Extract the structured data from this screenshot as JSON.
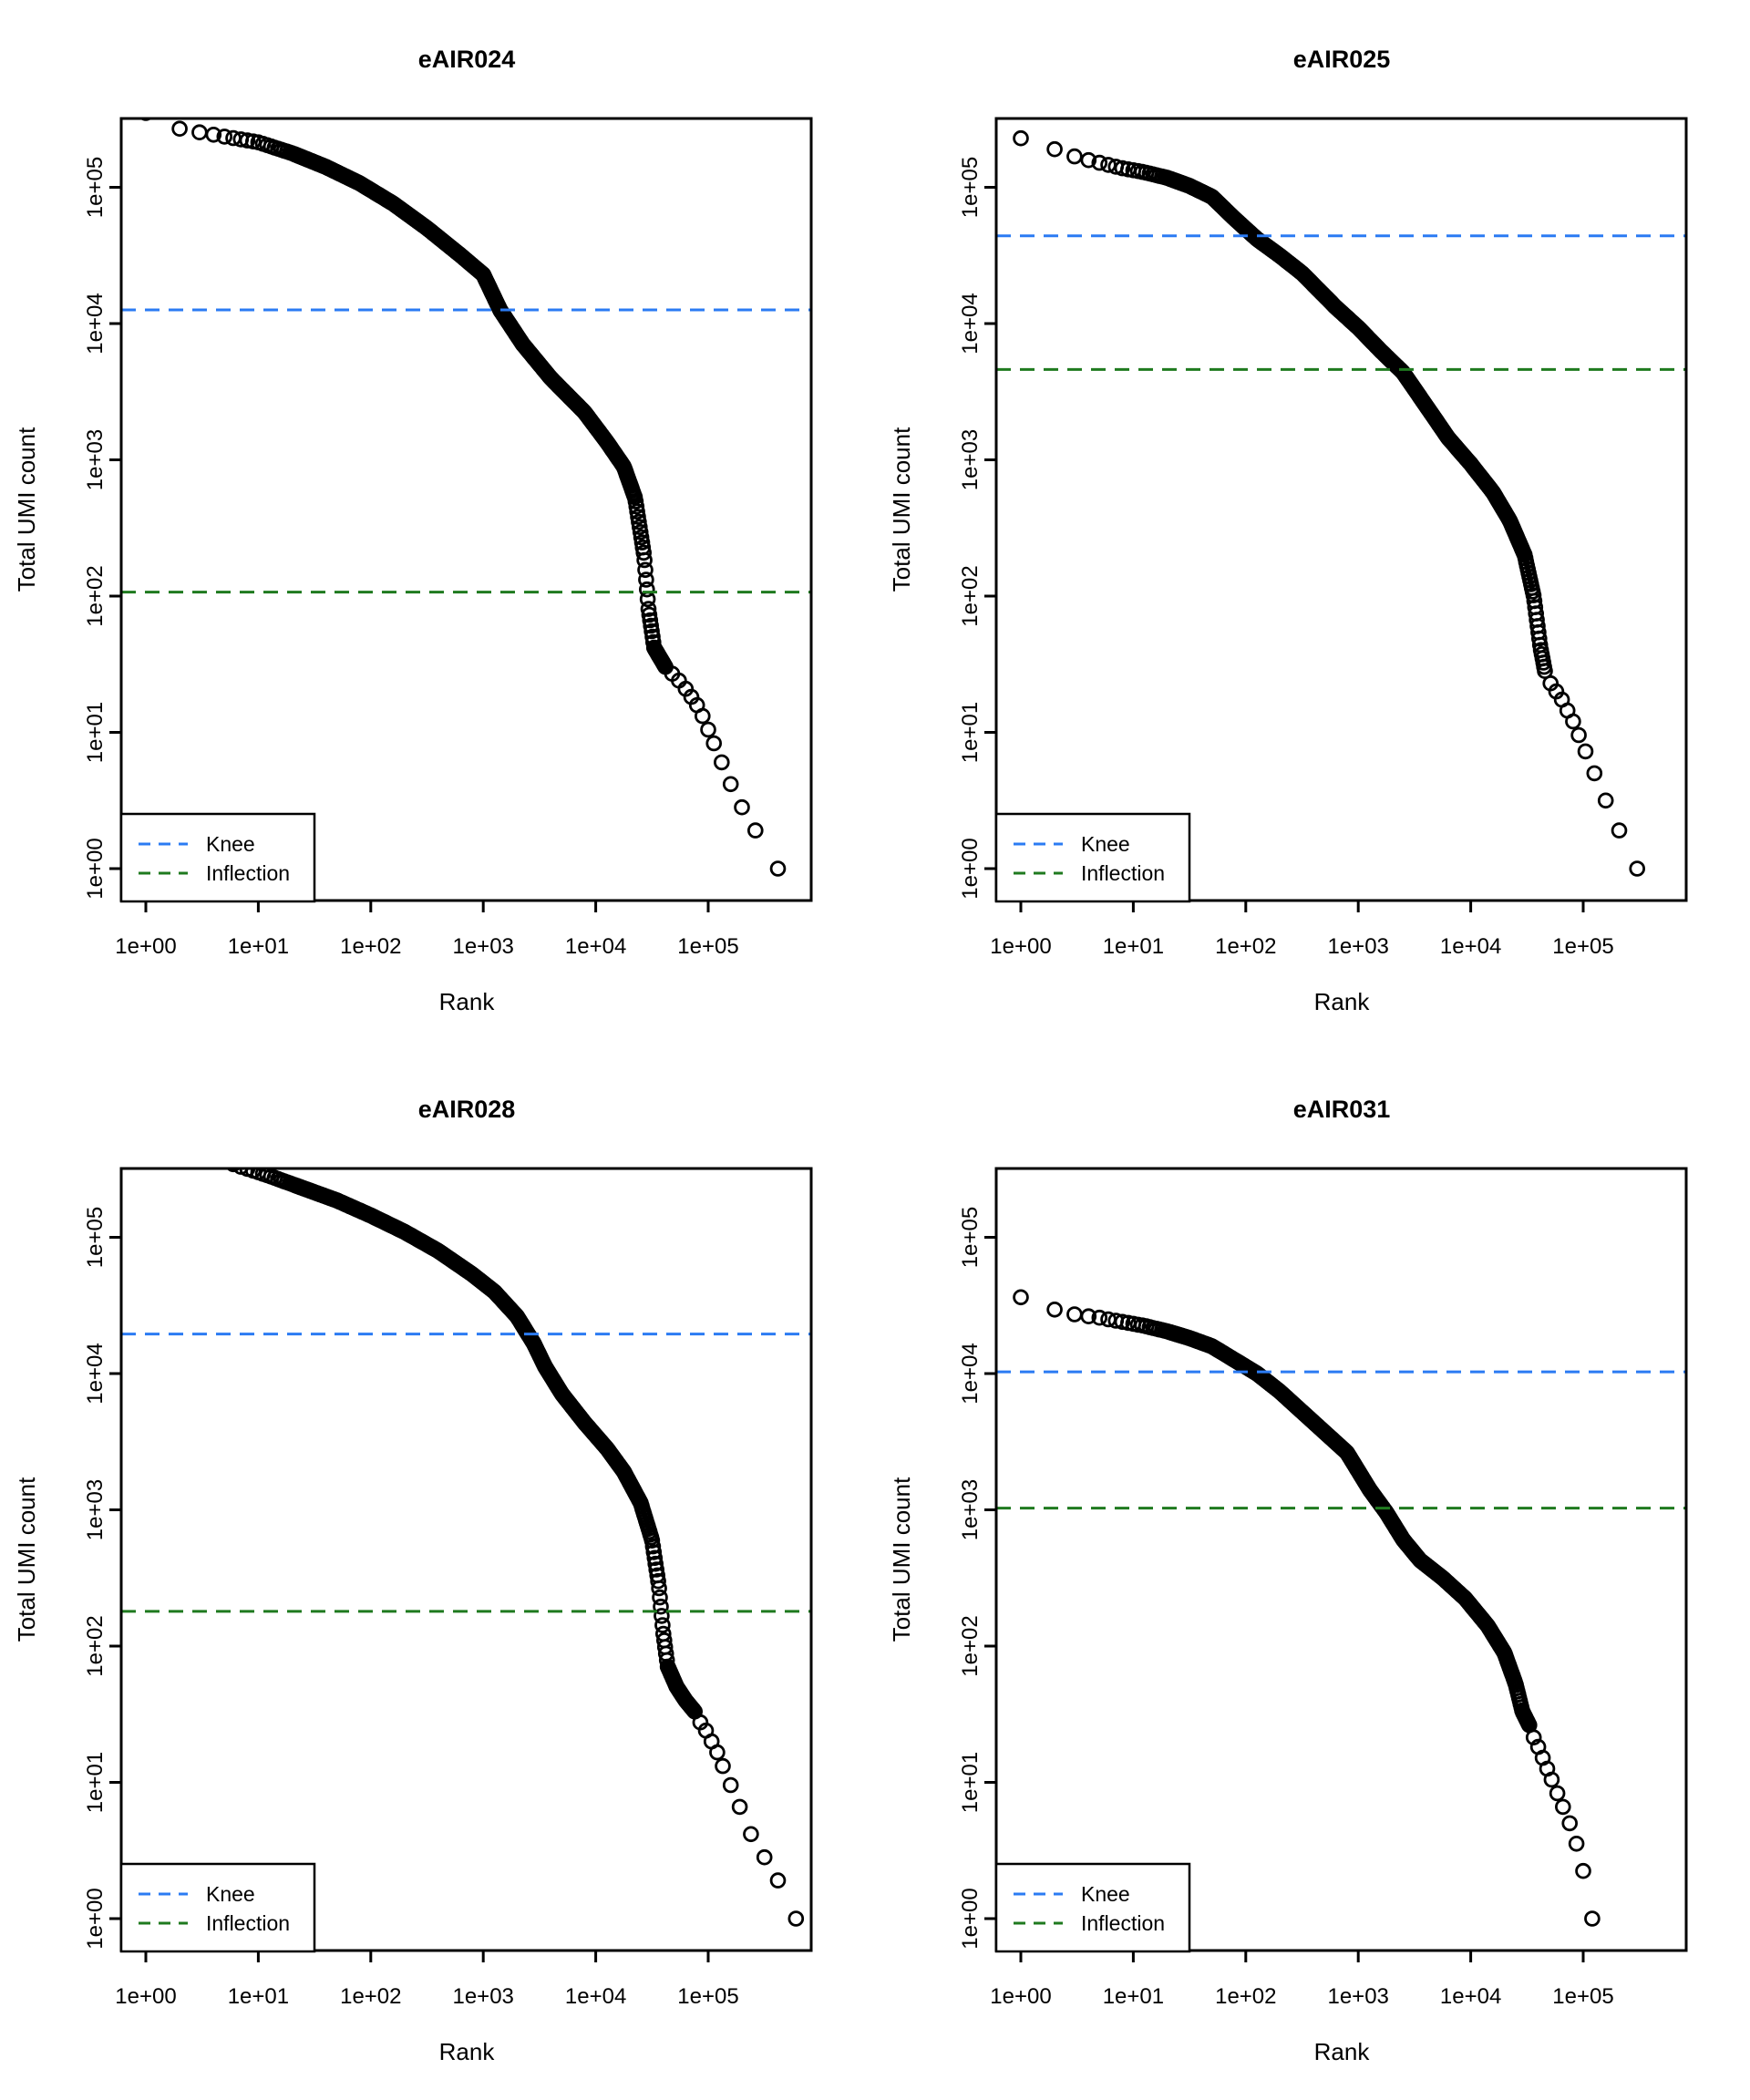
{
  "figure": {
    "rows": 2,
    "cols": 2,
    "background": "#ffffff"
  },
  "colors": {
    "knee_line": "#2b7bf3",
    "inflection_line": "#1f7a1f",
    "points": "#000000",
    "axis": "#000000"
  },
  "chart_data": [
    {
      "type": "scatter",
      "title": "eAIR024",
      "xlabel": "Rank",
      "ylabel": "Total UMI count",
      "xscale": "log10",
      "yscale": "log10",
      "grid": false,
      "x_tick_labels": [
        "1e+00",
        "1e+01",
        "1e+02",
        "1e+03",
        "1e+04",
        "1e+05"
      ],
      "y_tick_labels": [
        "1e+00",
        "1e+01",
        "1e+02",
        "1e+03",
        "1e+04",
        "1e+05"
      ],
      "legend": {
        "position": "bottom-left",
        "items": [
          {
            "label": "Knee",
            "color": "#2b7bf3"
          },
          {
            "label": "Inflection",
            "color": "#1f7a1f"
          }
        ]
      },
      "knee": 12600,
      "inflection": 107,
      "curve_log10_anchors": [
        [
          0,
          5.545
        ],
        [
          0.3,
          5.43
        ],
        [
          0.5,
          5.4
        ],
        [
          0.75,
          5.365
        ],
        [
          1.0,
          5.33
        ],
        [
          1.3,
          5.25
        ],
        [
          1.6,
          5.15
        ],
        [
          1.9,
          5.03
        ],
        [
          2.2,
          4.88
        ],
        [
          2.5,
          4.7
        ],
        [
          2.8,
          4.5
        ],
        [
          3.0,
          4.36
        ],
        [
          3.15,
          4.1
        ],
        [
          3.35,
          3.85
        ],
        [
          3.6,
          3.6
        ],
        [
          3.9,
          3.35
        ],
        [
          4.1,
          3.13
        ],
        [
          4.25,
          2.95
        ],
        [
          4.35,
          2.72
        ],
        [
          4.43,
          2.3
        ],
        [
          4.47,
          1.9
        ],
        [
          4.52,
          1.62
        ],
        [
          4.62,
          1.48
        ]
      ],
      "tail_points_log10": [
        [
          4.68,
          1.43
        ],
        [
          4.74,
          1.38
        ],
        [
          4.8,
          1.32
        ],
        [
          4.85,
          1.26
        ],
        [
          4.9,
          1.2
        ],
        [
          4.95,
          1.12
        ],
        [
          5.0,
          1.02
        ],
        [
          5.05,
          0.92
        ],
        [
          5.12,
          0.78
        ],
        [
          5.2,
          0.62
        ],
        [
          5.3,
          0.45
        ],
        [
          5.42,
          0.28
        ],
        [
          5.62,
          0.0
        ]
      ]
    },
    {
      "type": "scatter",
      "title": "eAIR025",
      "xlabel": "Rank",
      "ylabel": "Total UMI count",
      "xscale": "log10",
      "yscale": "log10",
      "grid": false,
      "x_tick_labels": [
        "1e+00",
        "1e+01",
        "1e+02",
        "1e+03",
        "1e+04",
        "1e+05"
      ],
      "y_tick_labels": [
        "1e+00",
        "1e+01",
        "1e+02",
        "1e+03",
        "1e+04",
        "1e+05"
      ],
      "legend": {
        "position": "bottom-left",
        "items": [
          {
            "label": "Knee",
            "color": "#2b7bf3"
          },
          {
            "label": "Inflection",
            "color": "#1f7a1f"
          }
        ]
      },
      "knee": 44000,
      "inflection": 4600,
      "curve_log10_anchors": [
        [
          0,
          5.36
        ],
        [
          0.3,
          5.28
        ],
        [
          0.5,
          5.22
        ],
        [
          0.7,
          5.18
        ],
        [
          0.9,
          5.14
        ],
        [
          1.1,
          5.11
        ],
        [
          1.3,
          5.07
        ],
        [
          1.5,
          5.01
        ],
        [
          1.7,
          4.93
        ],
        [
          1.9,
          4.77
        ],
        [
          2.1,
          4.62
        ],
        [
          2.3,
          4.5
        ],
        [
          2.5,
          4.37
        ],
        [
          2.8,
          4.12
        ],
        [
          3.0,
          3.97
        ],
        [
          3.2,
          3.8
        ],
        [
          3.4,
          3.64
        ],
        [
          3.6,
          3.4
        ],
        [
          3.8,
          3.16
        ],
        [
          4.0,
          2.97
        ],
        [
          4.2,
          2.76
        ],
        [
          4.35,
          2.55
        ],
        [
          4.48,
          2.3
        ],
        [
          4.56,
          2.0
        ],
        [
          4.62,
          1.62
        ],
        [
          4.66,
          1.45
        ]
      ],
      "tail_points_log10": [
        [
          4.71,
          1.36
        ],
        [
          4.76,
          1.3
        ],
        [
          4.81,
          1.24
        ],
        [
          4.86,
          1.16
        ],
        [
          4.91,
          1.08
        ],
        [
          4.96,
          0.98
        ],
        [
          5.02,
          0.86
        ],
        [
          5.1,
          0.7
        ],
        [
          5.2,
          0.5
        ],
        [
          5.32,
          0.28
        ],
        [
          5.48,
          0.0
        ]
      ]
    },
    {
      "type": "scatter",
      "title": "eAIR028",
      "xlabel": "Rank",
      "ylabel": "Total UMI count",
      "xscale": "log10",
      "yscale": "log10",
      "grid": false,
      "x_tick_labels": [
        "1e+00",
        "1e+01",
        "1e+02",
        "1e+03",
        "1e+04",
        "1e+05"
      ],
      "y_tick_labels": [
        "1e+00",
        "1e+01",
        "1e+02",
        "1e+03",
        "1e+04",
        "1e+05"
      ],
      "legend": {
        "position": "bottom-left",
        "items": [
          {
            "label": "Knee",
            "color": "#2b7bf3"
          },
          {
            "label": "Inflection",
            "color": "#1f7a1f"
          }
        ]
      },
      "knee": 19500,
      "inflection": 180,
      "curve_log10_anchors": [
        [
          0.5,
          5.62
        ],
        [
          0.8,
          5.53
        ],
        [
          1.1,
          5.45
        ],
        [
          1.4,
          5.36
        ],
        [
          1.7,
          5.27
        ],
        [
          2.0,
          5.16
        ],
        [
          2.3,
          5.04
        ],
        [
          2.6,
          4.9
        ],
        [
          2.9,
          4.73
        ],
        [
          3.1,
          4.6
        ],
        [
          3.3,
          4.42
        ],
        [
          3.45,
          4.22
        ],
        [
          3.55,
          4.05
        ],
        [
          3.7,
          3.85
        ],
        [
          3.9,
          3.64
        ],
        [
          4.1,
          3.45
        ],
        [
          4.25,
          3.28
        ],
        [
          4.4,
          3.05
        ],
        [
          4.5,
          2.78
        ],
        [
          4.56,
          2.45
        ],
        [
          4.6,
          2.1
        ],
        [
          4.64,
          1.85
        ],
        [
          4.72,
          1.7
        ],
        [
          4.8,
          1.6
        ],
        [
          4.88,
          1.52
        ]
      ],
      "tail_points_log10": [
        [
          4.93,
          1.44
        ],
        [
          4.98,
          1.38
        ],
        [
          5.03,
          1.3
        ],
        [
          5.08,
          1.22
        ],
        [
          5.13,
          1.12
        ],
        [
          5.2,
          0.98
        ],
        [
          5.28,
          0.82
        ],
        [
          5.38,
          0.62
        ],
        [
          5.5,
          0.45
        ],
        [
          5.62,
          0.28
        ],
        [
          5.78,
          0.0
        ]
      ]
    },
    {
      "type": "scatter",
      "title": "eAIR031",
      "xlabel": "Rank",
      "ylabel": "Total UMI count",
      "xscale": "log10",
      "yscale": "log10",
      "grid": false,
      "x_tick_labels": [
        "1e+00",
        "1e+01",
        "1e+02",
        "1e+03",
        "1e+04",
        "1e+05"
      ],
      "y_tick_labels": [
        "1e+00",
        "1e+01",
        "1e+02",
        "1e+03",
        "1e+04",
        "1e+05"
      ],
      "legend": {
        "position": "bottom-left",
        "items": [
          {
            "label": "Knee",
            "color": "#2b7bf3"
          },
          {
            "label": "Inflection",
            "color": "#1f7a1f"
          }
        ]
      },
      "knee": 10300,
      "inflection": 1030,
      "curve_log10_anchors": [
        [
          0,
          4.56
        ],
        [
          0.3,
          4.47
        ],
        [
          0.5,
          4.43
        ],
        [
          0.7,
          4.41
        ],
        [
          0.9,
          4.38
        ],
        [
          1.1,
          4.35
        ],
        [
          1.3,
          4.31
        ],
        [
          1.5,
          4.26
        ],
        [
          1.7,
          4.2
        ],
        [
          1.9,
          4.1
        ],
        [
          2.1,
          4.0
        ],
        [
          2.3,
          3.87
        ],
        [
          2.5,
          3.72
        ],
        [
          2.7,
          3.57
        ],
        [
          2.9,
          3.42
        ],
        [
          3.1,
          3.15
        ],
        [
          3.25,
          2.98
        ],
        [
          3.4,
          2.78
        ],
        [
          3.55,
          2.63
        ],
        [
          3.75,
          2.5
        ],
        [
          3.95,
          2.35
        ],
        [
          4.15,
          2.15
        ],
        [
          4.3,
          1.95
        ],
        [
          4.4,
          1.72
        ],
        [
          4.46,
          1.52
        ],
        [
          4.52,
          1.42
        ]
      ],
      "tail_points_log10": [
        [
          4.56,
          1.33
        ],
        [
          4.6,
          1.26
        ],
        [
          4.64,
          1.18
        ],
        [
          4.68,
          1.1
        ],
        [
          4.72,
          1.02
        ],
        [
          4.77,
          0.92
        ],
        [
          4.82,
          0.82
        ],
        [
          4.88,
          0.7
        ],
        [
          4.94,
          0.55
        ],
        [
          5.0,
          0.35
        ],
        [
          5.08,
          0.0
        ]
      ]
    }
  ]
}
